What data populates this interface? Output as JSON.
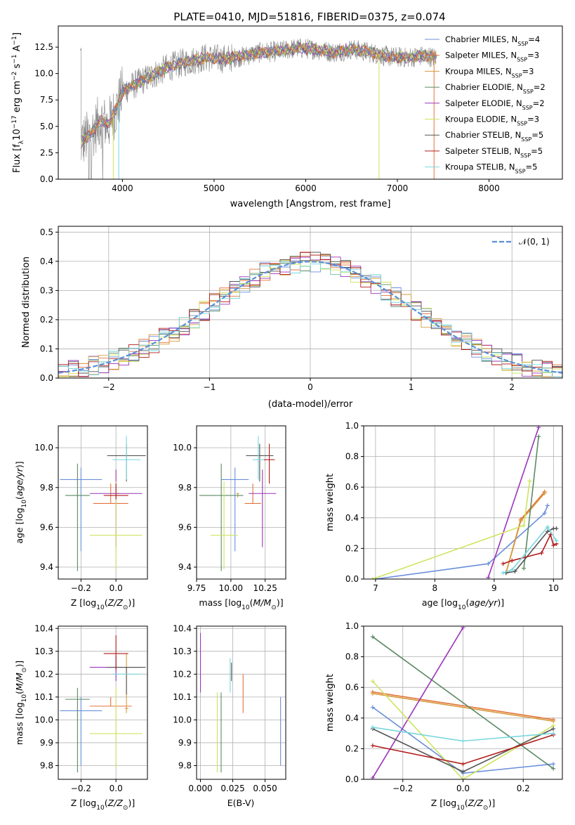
{
  "title": "PLATE=0410, MJD=51816, FIBERID=0375, z=0.074",
  "colors": {
    "chabrier_miles": "#6a8fdc",
    "salpeter_miles": "#e3733a",
    "kroupa_miles": "#d69a3b",
    "chabrier_elodie": "#5b8a63",
    "salpeter_elodie": "#9b34b9",
    "kroupa_elodie": "#cfe35f",
    "chabrier_stelib": "#555555",
    "salpeter_stelib": "#b31b1b",
    "kroupa_stelib": "#78d7df",
    "data": "#808080",
    "normal": "#5b8fd6"
  },
  "chart_data": [
    {
      "type": "line",
      "panel": "spectrum",
      "xlabel": "wavelength [Angstrom, rest frame]",
      "ylabel": "Flux [f_λ10^-17 erg cm^-2 s^-1 A^-1]",
      "xlim": [
        3300,
        8800
      ],
      "ylim": [
        0,
        14.5
      ],
      "xticks": [
        4000,
        5000,
        6000,
        7000,
        8000
      ],
      "yticks": [
        0.0,
        2.5,
        5.0,
        7.5,
        10.0,
        12.5
      ],
      "legend_position": "top-right",
      "legend": [
        {
          "label": "Chabrier MILES, N",
          "sub": "SSP",
          "suffix": "=4",
          "color_key": "chabrier_miles"
        },
        {
          "label": "Salpeter MILES, N",
          "sub": "SSP",
          "suffix": "=3",
          "color_key": "salpeter_miles"
        },
        {
          "label": "Kroupa MILES, N",
          "sub": "SSP",
          "suffix": "=3",
          "color_key": "kroupa_miles"
        },
        {
          "label": "Chabrier ELODIE, N",
          "sub": "SSP",
          "suffix": "=2",
          "color_key": "chabrier_elodie"
        },
        {
          "label": "Salpeter ELODIE, N",
          "sub": "SSP",
          "suffix": "=2",
          "color_key": "salpeter_elodie"
        },
        {
          "label": "Kroupa ELODIE, N",
          "sub": "SSP",
          "suffix": "=3",
          "color_key": "kroupa_elodie"
        },
        {
          "label": "Chabrier STELIB, N",
          "sub": "SSP",
          "suffix": "=5",
          "color_key": "chabrier_stelib"
        },
        {
          "label": "Salpeter STELIB, N",
          "sub": "SSP",
          "suffix": "=5",
          "color_key": "salpeter_stelib"
        },
        {
          "label": "Kroupa STELIB, N",
          "sub": "SSP",
          "suffix": "=5",
          "color_key": "kroupa_stelib"
        }
      ],
      "continuum": {
        "x": [
          3550,
          3650,
          3750,
          3850,
          3950,
          4000,
          4100,
          4300,
          4500,
          4700,
          4900,
          5100,
          5300,
          5500,
          5700,
          5900,
          6100,
          6300,
          6500,
          6700,
          6900,
          7100,
          7300,
          7420
        ],
        "y": [
          3.5,
          4.2,
          5.5,
          5.2,
          7.0,
          8.3,
          8.8,
          9.7,
          10.6,
          11.1,
          11.5,
          11.4,
          11.6,
          12.0,
          12.1,
          12.4,
          12.3,
          12.0,
          12.3,
          12.0,
          11.6,
          11.5,
          11.7,
          11.5
        ]
      },
      "model_cutoffs": [
        {
          "color_key": "kroupa_elodie",
          "x": 3900
        },
        {
          "color_key": "kroupa_stelib",
          "x": 3960
        },
        {
          "color_key": "kroupa_elodie",
          "x": 6800
        },
        {
          "color_key": "salpeter_miles",
          "x": 7400
        }
      ]
    },
    {
      "type": "histogram",
      "panel": "residuals",
      "xlabel": "(data-model)/error",
      "ylabel": "Normed distribution",
      "xlim": [
        -2.5,
        2.5
      ],
      "ylim": [
        0,
        0.52
      ],
      "xticks": [
        -2,
        -1,
        0,
        1,
        2
      ],
      "xtick_labels": [
        "−2",
        "−1",
        "0",
        "1",
        "2"
      ],
      "yticks": [
        0.0,
        0.1,
        0.2,
        0.3,
        0.4,
        0.5
      ],
      "bin_edges_range": [
        -2.5,
        2.5
      ],
      "bin_count": 50,
      "normal_curve": {
        "label": "N(0, 1)",
        "mu": 0,
        "sigma": 1
      },
      "legend_position": "top-right"
    },
    {
      "type": "scatter",
      "panel": "Z-vs-age",
      "xlabel": "Z [log10(Z/Z⊙)]",
      "ylabel": "age [log10(age/yr)]",
      "xlim": [
        -0.33,
        0.18
      ],
      "ylim": [
        9.34,
        10.11
      ],
      "xticks": [
        -0.2,
        0.0
      ],
      "xtick_labels": [
        "−0.2",
        "0.0"
      ],
      "yticks": [
        9.4,
        9.6,
        9.8,
        10.0
      ],
      "points": [
        {
          "color_key": "chabrier_miles",
          "x": -0.2,
          "y": 9.84,
          "xerr": 0.12,
          "yerr_lo": 0.36,
          "yerr_hi": 0.06
        },
        {
          "color_key": "salpeter_miles",
          "x": -0.03,
          "y": 9.72,
          "xerr": 0.1,
          "yerr_lo": 0.0,
          "yerr_hi": 0.1
        },
        {
          "color_key": "kroupa_miles",
          "x": 0.0,
          "y": 9.77,
          "xerr": 0.02,
          "yerr_lo": 0.02,
          "yerr_hi": 0.0
        },
        {
          "color_key": "chabrier_elodie",
          "x": -0.22,
          "y": 9.76,
          "xerr": 0.07,
          "yerr_lo": 0.38,
          "yerr_hi": 0.16
        },
        {
          "color_key": "salpeter_elodie",
          "x": 0.0,
          "y": 9.77,
          "xerr": 0.15,
          "yerr_lo": 0.27,
          "yerr_hi": 0.12
        },
        {
          "color_key": "kroupa_elodie",
          "x": 0.0,
          "y": 9.56,
          "xerr": 0.15,
          "yerr_lo": 0.17,
          "yerr_hi": 0.27
        },
        {
          "color_key": "chabrier_stelib",
          "x": 0.06,
          "y": 9.96,
          "xerr": 0.11,
          "yerr_lo": 0.13,
          "yerr_hi": 0.06
        },
        {
          "color_key": "salpeter_stelib",
          "x": 0.0,
          "y": 9.76,
          "xerr": 0.07,
          "yerr_lo": 0.02,
          "yerr_hi": 0.06
        },
        {
          "color_key": "kroupa_stelib",
          "x": 0.06,
          "y": 9.94,
          "xerr": 0.08,
          "yerr_lo": 0.1,
          "yerr_hi": 0.12
        }
      ]
    },
    {
      "type": "scatter",
      "panel": "mass-vs-age",
      "xlabel": "mass [log10(M/M⊙)]",
      "xlim": [
        9.75,
        10.4
      ],
      "ylim": [
        9.34,
        10.11
      ],
      "xticks": [
        9.75,
        10.0,
        10.25
      ],
      "xtick_labels": [
        "9.75",
        "10.00",
        "10.25"
      ],
      "yticks": [
        9.4,
        9.6,
        9.8,
        10.0
      ],
      "points": [
        {
          "color_key": "chabrier_miles",
          "x": 10.03,
          "y": 9.84,
          "xerr": 0.1,
          "yerr_lo": 0.36,
          "yerr_hi": 0.06
        },
        {
          "color_key": "salpeter_miles",
          "x": 10.16,
          "y": 9.72,
          "xerr": 0.06,
          "yerr_lo": 0.0,
          "yerr_hi": 0.1
        },
        {
          "color_key": "kroupa_miles",
          "x": 10.05,
          "y": 9.77,
          "xerr": 0.01,
          "yerr_lo": 0.02,
          "yerr_hi": 0.0
        },
        {
          "color_key": "chabrier_elodie",
          "x": 9.93,
          "y": 9.76,
          "xerr": 0.16,
          "yerr_lo": 0.38,
          "yerr_hi": 0.16
        },
        {
          "color_key": "salpeter_elodie",
          "x": 10.23,
          "y": 9.77,
          "xerr": 0.1,
          "yerr_lo": 0.27,
          "yerr_hi": 0.12
        },
        {
          "color_key": "kroupa_elodie",
          "x": 9.95,
          "y": 9.56,
          "xerr": 0.1,
          "yerr_lo": 0.17,
          "yerr_hi": 0.27
        },
        {
          "color_key": "chabrier_stelib",
          "x": 10.21,
          "y": 9.96,
          "xerr": 0.1,
          "yerr_lo": 0.13,
          "yerr_hi": 0.06
        },
        {
          "color_key": "salpeter_stelib",
          "x": 10.28,
          "y": 9.94,
          "xerr": 0.04,
          "yerr_lo": 0.12,
          "yerr_hi": 0.08
        },
        {
          "color_key": "kroupa_stelib",
          "x": 10.2,
          "y": 9.94,
          "xerr": 0.04,
          "yerr_lo": 0.1,
          "yerr_hi": 0.12
        }
      ]
    },
    {
      "type": "line",
      "panel": "age-vs-mass-weight",
      "xlabel": "age [log10(age/yr)]",
      "ylabel": "mass weight",
      "xlim": [
        6.8,
        10.15
      ],
      "ylim": [
        0,
        1
      ],
      "xticks": [
        7,
        8,
        9,
        10
      ],
      "yticks": [
        0.0,
        0.2,
        0.4,
        0.6,
        0.8,
        1.0
      ],
      "series": [
        {
          "color_key": "chabrier_miles",
          "x": [
            7.0,
            8.9,
            9.85,
            9.9
          ],
          "y": [
            0.0,
            0.1,
            0.43,
            0.48
          ]
        },
        {
          "color_key": "salpeter_miles",
          "x": [
            9.2,
            9.45,
            9.85
          ],
          "y": [
            0.04,
            0.39,
            0.57
          ]
        },
        {
          "color_key": "kroupa_miles",
          "x": [
            9.2,
            9.45,
            9.85
          ],
          "y": [
            0.04,
            0.38,
            0.56
          ]
        },
        {
          "color_key": "chabrier_elodie",
          "x": [
            9.5,
            9.75
          ],
          "y": [
            0.07,
            0.93
          ]
        },
        {
          "color_key": "salpeter_elodie",
          "x": [
            8.9,
            9.75
          ],
          "y": [
            0.01,
            0.99
          ]
        },
        {
          "color_key": "kroupa_elodie",
          "x": [
            6.95,
            9.5,
            9.6
          ],
          "y": [
            0.0,
            0.35,
            0.64
          ]
        },
        {
          "color_key": "chabrier_stelib",
          "x": [
            9.2,
            9.35,
            9.9,
            10.0,
            10.05
          ],
          "y": [
            0.04,
            0.05,
            0.31,
            0.33,
            0.33
          ]
        },
        {
          "color_key": "salpeter_stelib",
          "x": [
            9.15,
            9.3,
            9.8,
            9.95,
            10.0,
            10.05
          ],
          "y": [
            0.1,
            0.12,
            0.17,
            0.29,
            0.22,
            0.23
          ]
        },
        {
          "color_key": "kroupa_stelib",
          "x": [
            9.15,
            9.3,
            9.9,
            10.05
          ],
          "y": [
            0.04,
            0.06,
            0.34,
            0.25
          ]
        }
      ]
    },
    {
      "type": "scatter",
      "panel": "Z-vs-mass",
      "xlabel": "Z [log10(Z/Z⊙)]",
      "ylabel": "mass [log10(M/M⊙)]",
      "xlim": [
        -0.33,
        0.18
      ],
      "ylim": [
        9.74,
        10.41
      ],
      "xticks": [
        -0.2,
        0.0
      ],
      "xtick_labels": [
        "−0.2",
        "0.0"
      ],
      "yticks": [
        9.8,
        9.9,
        10.0,
        10.1,
        10.2,
        10.3,
        10.4
      ],
      "points": [
        {
          "color_key": "chabrier_miles",
          "x": -0.2,
          "y": 10.04,
          "xerr": 0.12,
          "yerr_lo": 0.24,
          "yerr_hi": 0.06
        },
        {
          "color_key": "salpeter_miles",
          "x": -0.03,
          "y": 10.06,
          "xerr": 0.12,
          "yerr_lo": 0.0,
          "yerr_hi": 0.04
        },
        {
          "color_key": "kroupa_miles",
          "x": 0.06,
          "y": 10.05,
          "xerr": 0.01,
          "yerr_lo": 0.02,
          "yerr_hi": 0.24
        },
        {
          "color_key": "chabrier_elodie",
          "x": -0.22,
          "y": 10.09,
          "xerr": 0.07,
          "yerr_lo": 0.32,
          "yerr_hi": 0.05
        },
        {
          "color_key": "salpeter_elodie",
          "x": 0.0,
          "y": 10.23,
          "xerr": 0.15,
          "yerr_lo": 0.06,
          "yerr_hi": 0.05
        },
        {
          "color_key": "kroupa_elodie",
          "x": 0.0,
          "y": 9.94,
          "xerr": 0.15,
          "yerr_lo": 0.15,
          "yerr_hi": 0.2
        },
        {
          "color_key": "chabrier_stelib",
          "x": 0.06,
          "y": 10.23,
          "xerr": 0.11,
          "yerr_lo": 0.12,
          "yerr_hi": 0.0
        },
        {
          "color_key": "salpeter_stelib",
          "x": 0.0,
          "y": 10.29,
          "xerr": 0.07,
          "yerr_lo": 0.07,
          "yerr_hi": 0.08
        },
        {
          "color_key": "kroupa_stelib",
          "x": 0.06,
          "y": 10.2,
          "xerr": 0.08,
          "yerr_lo": 0.0,
          "yerr_hi": 0.0
        }
      ]
    },
    {
      "type": "scatter",
      "panel": "EBV-vs-mass",
      "xlabel": "E(B-V)",
      "xlim": [
        -0.003,
        0.066
      ],
      "ylim": [
        9.74,
        10.41
      ],
      "xticks": [
        0.0,
        0.025,
        0.05
      ],
      "xtick_labels": [
        "0.000",
        "0.025",
        "0.050"
      ],
      "yticks": [
        9.8,
        9.9,
        10.0,
        10.1,
        10.2,
        10.3,
        10.4
      ],
      "points": [
        {
          "color_key": "salpeter_elodie",
          "x": 0.0,
          "y": 10.25,
          "xerr": 0.0,
          "yerr_lo": 0.13,
          "yerr_hi": 0.13
        },
        {
          "color_key": "kroupa_elodie",
          "x": 0.013,
          "y": 9.95,
          "xerr": 0.0,
          "yerr_lo": 0.18,
          "yerr_hi": 0.17
        },
        {
          "color_key": "chabrier_elodie",
          "x": 0.016,
          "y": 9.94,
          "xerr": 0.0,
          "yerr_lo": 0.17,
          "yerr_hi": 0.18
        },
        {
          "color_key": "kroupa_stelib",
          "x": 0.023,
          "y": 10.19,
          "xerr": 0.0,
          "yerr_lo": 0.07,
          "yerr_hi": 0.08
        },
        {
          "color_key": "chabrier_stelib",
          "x": 0.024,
          "y": 10.21,
          "xerr": 0.0,
          "yerr_lo": 0.04,
          "yerr_hi": 0.04
        },
        {
          "color_key": "salpeter_miles",
          "x": 0.033,
          "y": 10.11,
          "xerr": 0.0,
          "yerr_lo": 0.08,
          "yerr_hi": 0.09
        },
        {
          "color_key": "chabrier_miles",
          "x": 0.062,
          "y": 9.95,
          "xerr": 0.0,
          "yerr_lo": 0.15,
          "yerr_hi": 0.15
        }
      ]
    },
    {
      "type": "line",
      "panel": "Z-vs-mass-weight",
      "xlabel": "Z [log10(Z/Z⊙)]",
      "ylabel": "mass weight",
      "xlim": [
        -0.33,
        0.33
      ],
      "ylim": [
        0,
        1
      ],
      "xticks": [
        -0.2,
        0.0,
        0.2
      ],
      "xtick_labels": [
        "−0.2",
        "0.0",
        "0.2"
      ],
      "yticks": [
        0.0,
        0.2,
        0.4,
        0.6,
        0.8,
        1.0
      ],
      "series": [
        {
          "color_key": "chabrier_miles",
          "x": [
            -0.3,
            0.0,
            0.3
          ],
          "y": [
            0.47,
            0.04,
            0.1
          ]
        },
        {
          "color_key": "salpeter_miles",
          "x": [
            -0.3,
            0.3
          ],
          "y": [
            0.57,
            0.39
          ]
        },
        {
          "color_key": "kroupa_miles",
          "x": [
            -0.3,
            0.3
          ],
          "y": [
            0.56,
            0.38
          ]
        },
        {
          "color_key": "chabrier_elodie",
          "x": [
            -0.3,
            0.3
          ],
          "y": [
            0.93,
            0.07
          ]
        },
        {
          "color_key": "salpeter_elodie",
          "x": [
            -0.3,
            0.0
          ],
          "y": [
            0.01,
            0.99
          ]
        },
        {
          "color_key": "kroupa_elodie",
          "x": [
            -0.3,
            0.0,
            0.3
          ],
          "y": [
            0.64,
            0.0,
            0.35
          ]
        },
        {
          "color_key": "chabrier_stelib",
          "x": [
            -0.3,
            0.0,
            0.3
          ],
          "y": [
            0.33,
            0.05,
            0.33
          ]
        },
        {
          "color_key": "salpeter_stelib",
          "x": [
            -0.3,
            0.0,
            0.3
          ],
          "y": [
            0.22,
            0.1,
            0.29
          ]
        },
        {
          "color_key": "kroupa_stelib",
          "x": [
            -0.3,
            0.0,
            0.3
          ],
          "y": [
            0.34,
            0.25,
            0.3
          ]
        }
      ]
    }
  ]
}
